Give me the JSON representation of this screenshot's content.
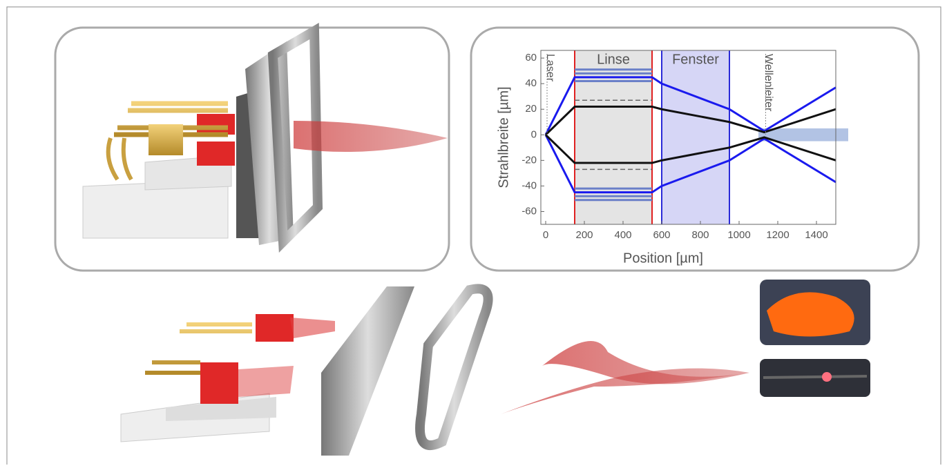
{
  "chart_data": {
    "type": "line",
    "xlabel": "Position [µm]",
    "ylabel": "Strahlbreite [µm]",
    "xlim": [
      -25,
      1500
    ],
    "ylim": [
      -70,
      66
    ],
    "xticks": [
      0,
      200,
      400,
      600,
      800,
      1000,
      1200,
      1400
    ],
    "yticks": [
      -60,
      -40,
      -20,
      0,
      20,
      40,
      60
    ],
    "regions": [
      {
        "label": "Linse",
        "x": [
          150,
          550
        ],
        "color": "#e4e4e4",
        "edge_color": "#e02020"
      },
      {
        "label": "Fenster",
        "x": [
          600,
          950
        ],
        "color": "#d6d6f6",
        "edge_color": "#2a2ad8"
      }
    ],
    "annotations": [
      {
        "text": "Laser",
        "x": 0
      },
      {
        "text": "Wellenleiter",
        "x": 1130
      }
    ],
    "band": {
      "x": [
        1100,
        1500
      ],
      "y": [
        -5,
        5
      ],
      "color": "#9fb4dd"
    },
    "series": [
      {
        "color": "#1a1aee",
        "x": [
          0,
          150,
          550,
          600,
          950,
          1130,
          1500
        ],
        "values": [
          0,
          45,
          45,
          40,
          20,
          3,
          37
        ]
      },
      {
        "color": "#1a1aee",
        "x": [
          0,
          150,
          550,
          600,
          950,
          1130,
          1500
        ],
        "values": [
          0,
          -45,
          -45,
          -40,
          -20,
          -3,
          -37
        ]
      },
      {
        "color": "#111111",
        "x": [
          0,
          150,
          550,
          600,
          950,
          1130,
          1500
        ],
        "values": [
          0,
          22,
          22,
          20,
          10,
          2,
          20
        ]
      },
      {
        "color": "#111111",
        "x": [
          0,
          150,
          550,
          600,
          950,
          1130,
          1500
        ],
        "values": [
          0,
          -22,
          -22,
          -20,
          -10,
          -2,
          -20
        ]
      },
      {
        "color": "#666666",
        "dash": true,
        "x": [
          150,
          550
        ],
        "values": [
          27,
          27
        ]
      },
      {
        "color": "#666666",
        "dash": true,
        "x": [
          150,
          550
        ],
        "values": [
          -27,
          -27
        ]
      },
      {
        "color": "#6a7fc8",
        "x": [
          150,
          550
        ],
        "values": [
          42,
          42
        ]
      },
      {
        "color": "#6a7fc8",
        "x": [
          150,
          550
        ],
        "values": [
          48,
          48
        ]
      },
      {
        "color": "#6a7fc8",
        "x": [
          150,
          550
        ],
        "values": [
          51,
          51
        ]
      },
      {
        "color": "#6a7fc8",
        "x": [
          150,
          550
        ],
        "values": [
          -42,
          -42
        ]
      },
      {
        "color": "#6a7fc8",
        "x": [
          150,
          550
        ],
        "values": [
          -48,
          -48
        ]
      },
      {
        "color": "#6a7fc8",
        "x": [
          150,
          550
        ],
        "values": [
          -51,
          -51
        ]
      }
    ]
  }
}
